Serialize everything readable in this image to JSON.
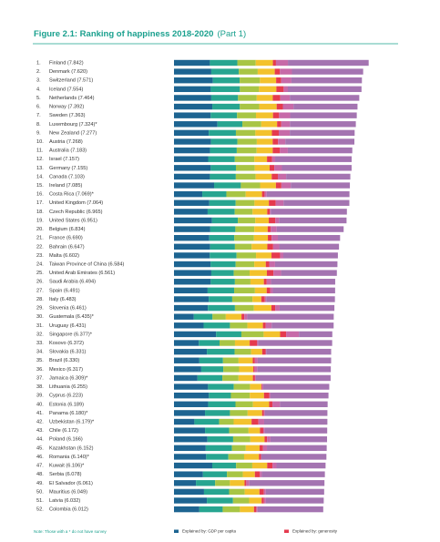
{
  "chart_data": {
    "type": "stacked-bar-horizontal",
    "title": "Figure 2.1: Ranking of happiness 2018-2020",
    "subtitle": "(Part 1)",
    "note": "Note: Those with a * do not have survey",
    "xlim": [
      0,
      8
    ],
    "ranks": [
      "1.",
      "2.",
      "3.",
      "4.",
      "5.",
      "6.",
      "7.",
      "8.",
      "9.",
      "10.",
      "11.",
      "12.",
      "13.",
      "14.",
      "15.",
      "16.",
      "17.",
      "18.",
      "19.",
      "20.",
      "21.",
      "22.",
      "23.",
      "24.",
      "25.",
      "26.",
      "27.",
      "28.",
      "29.",
      "30.",
      "31.",
      "32.",
      "33.",
      "34.",
      "35.",
      "36.",
      "37.",
      "38.",
      "39.",
      "40.",
      "41.",
      "42.",
      "43.",
      "44.",
      "45.",
      "46.",
      "47.",
      "48.",
      "49.",
      "50.",
      "51.",
      "52."
    ],
    "categories": [
      "Finland (7.842)",
      "Denmark (7.620)",
      "Switzerland (7.571)",
      "Iceland (7.554)",
      "Netherlands (7.464)",
      "Norway (7.392)",
      "Sweden (7.363)",
      "Luxembourg (7.324)*",
      "New Zealand (7.277)",
      "Austria (7.268)",
      "Australia (7.183)",
      "Israel (7.157)",
      "Germany (7.155)",
      "Canada (7.103)",
      "Ireland (7.085)",
      "Costa Rica (7.069)*",
      "United Kingdom (7.064)",
      "Czech Republic (6.965)",
      "United States (6.951)",
      "Belgium (6.834)",
      "France (6.690)",
      "Bahrain (6.647)",
      "Malta (6.602)",
      "Taiwan Province of China (6.584)",
      "United Arab Emirates (6.561)",
      "Saudi Arabia (6.494)",
      "Spain (6.491)",
      "Italy (6.483)",
      "Slovenia (6.461)",
      "Guatemala (6.435)*",
      "Uruguay (6.431)",
      "Singapore (6.377)*",
      "Kosovo (6.372)",
      "Slovakia (6.331)",
      "Brazil (6.330)",
      "Mexico (6.317)",
      "Jamaica (6.309)*",
      "Lithuania (6.255)",
      "Cyprus (6.223)",
      "Estonia (6.189)",
      "Panama (6.180)*",
      "Uzbekistan (6.179)*",
      "Chile (6.172)",
      "Poland (6.166)",
      "Kazakhstan (6.152)",
      "Romania (6.140)*",
      "Kuwait (6.106)*",
      "Serbia (6.078)",
      "El Salvador (6.061)",
      "Mauritius (6.049)",
      "Latvia (6.032)",
      "Colombia (6.012)"
    ],
    "series": [
      {
        "name": "Explained by: GDP per capita",
        "color": "#1d6491",
        "values": [
          1.446,
          1.502,
          1.566,
          1.482,
          1.501,
          1.543,
          1.478,
          1.751,
          1.4,
          1.492,
          1.453,
          1.376,
          1.48,
          1.447,
          1.615,
          1.139,
          1.423,
          1.356,
          1.533,
          1.463,
          1.421,
          1.457,
          1.441,
          1.472,
          1.503,
          1.48,
          1.355,
          1.4,
          1.364,
          0.8,
          1.192,
          1.695,
          1.001,
          1.325,
          1.022,
          1.098,
          0.948,
          1.372,
          1.406,
          1.379,
          1.249,
          0.822,
          1.25,
          1.346,
          1.279,
          1.297,
          1.541,
          1.167,
          0.884,
          1.209,
          1.324,
          1.021
        ]
      },
      {
        "color": "#27a590",
        "values": [
          1.106,
          1.108,
          1.079,
          1.172,
          1.079,
          1.108,
          1.062,
          1.003,
          1.094,
          1.062,
          1.076,
          1.074,
          1.015,
          1.044,
          1.078,
          0.97,
          1.062,
          1.091,
          1.039,
          1.01,
          1.01,
          0.998,
          1.08,
          1.013,
          0.905,
          0.974,
          1.068,
          0.946,
          1.091,
          0.751,
          1.062,
          1.019,
          0.834,
          1.117,
          0.952,
          0.887,
          1.001,
          1.037,
          0.886,
          1.098,
          1.005,
          0.998,
          0.972,
          1.037,
          1.057,
          0.892,
          0.961,
          0.965,
          0.774,
          1.012,
          1.053,
          0.94
        ]
      },
      {
        "color": "#a8c545",
        "values": [
          0.741,
          0.763,
          0.816,
          0.772,
          0.753,
          0.782,
          0.763,
          0.76,
          0.785,
          0.782,
          0.801,
          0.788,
          0.757,
          0.798,
          0.775,
          0.781,
          0.757,
          0.718,
          0.702,
          0.763,
          0.791,
          0.674,
          0.783,
          0.749,
          0.639,
          0.626,
          0.838,
          0.815,
          0.766,
          0.536,
          0.703,
          0.897,
          0.622,
          0.667,
          0.627,
          0.638,
          0.65,
          0.652,
          0.762,
          0.703,
          0.712,
          0.583,
          0.782,
          0.693,
          0.556,
          0.636,
          0.652,
          0.641,
          0.593,
          0.627,
          0.65,
          0.695
        ]
      },
      {
        "color": "#f3c22d",
        "values": [
          0.691,
          0.686,
          0.653,
          0.698,
          0.647,
          0.703,
          0.685,
          0.639,
          0.665,
          0.64,
          0.647,
          0.509,
          0.6,
          0.648,
          0.638,
          0.656,
          0.58,
          0.591,
          0.544,
          0.537,
          0.56,
          0.631,
          0.624,
          0.463,
          0.694,
          0.541,
          0.473,
          0.357,
          0.703,
          0.633,
          0.625,
          0.664,
          0.592,
          0.444,
          0.571,
          0.572,
          0.58,
          0.456,
          0.571,
          0.654,
          0.584,
          0.722,
          0.46,
          0.572,
          0.556,
          0.599,
          0.6,
          0.485,
          0.591,
          0.594,
          0.505,
          0.566
        ]
      },
      {
        "name": "Explained by: generosity",
        "color": "#e53a4e",
        "values": [
          0.124,
          0.208,
          0.204,
          0.293,
          0.302,
          0.249,
          0.244,
          0.166,
          0.276,
          0.215,
          0.291,
          0.208,
          0.19,
          0.246,
          0.219,
          0.103,
          0.274,
          0.104,
          0.265,
          0.125,
          0.15,
          0.234,
          0.345,
          0.139,
          0.266,
          0.114,
          0.141,
          0.14,
          0.152,
          0.113,
          0.116,
          0.242,
          0.291,
          0.136,
          0.087,
          0.049,
          0.083,
          0.027,
          0.213,
          0.132,
          0.07,
          0.276,
          0.132,
          0.101,
          0.139,
          0.082,
          0.214,
          0.2,
          0.07,
          0.179,
          0.091,
          0.094
        ]
      },
      {
        "color": "#c76aa8",
        "values": [
          0.481,
          0.485,
          0.413,
          0.17,
          0.384,
          0.427,
          0.448,
          0.353,
          0.445,
          0.292,
          0.317,
          0.119,
          0.306,
          0.335,
          0.379,
          0.085,
          0.319,
          0.036,
          0.147,
          0.237,
          0.252,
          0.246,
          0.131,
          0.234,
          0.308,
          0.176,
          0.105,
          0.055,
          0.179,
          0.117,
          0.235,
          0.516,
          0.05,
          0.029,
          0.114,
          0.106,
          0.038,
          0.049,
          0.05,
          0.304,
          0.047,
          0.231,
          0.059,
          0.137,
          0.157,
          0.013,
          0.16,
          0.079,
          0.126,
          0.077,
          0.079,
          0.051
        ]
      },
      {
        "color": "#a474b1",
        "values": [
          3.253,
          2.868,
          2.839,
          2.967,
          2.798,
          2.58,
          2.683,
          2.653,
          2.612,
          2.784,
          2.598,
          3.083,
          2.807,
          2.585,
          2.381,
          3.335,
          2.649,
          3.069,
          2.721,
          2.699,
          2.506,
          2.407,
          2.198,
          2.514,
          2.246,
          2.583,
          2.511,
          2.77,
          2.206,
          3.485,
          2.498,
          1.344,
          2.982,
          2.613,
          2.957,
          2.967,
          3.009,
          2.662,
          2.335,
          1.919,
          2.513,
          2.547,
          2.517,
          2.28,
          2.408,
          2.621,
          1.978,
          2.541,
          3.023,
          2.351,
          2.33,
          2.645
        ]
      }
    ]
  }
}
